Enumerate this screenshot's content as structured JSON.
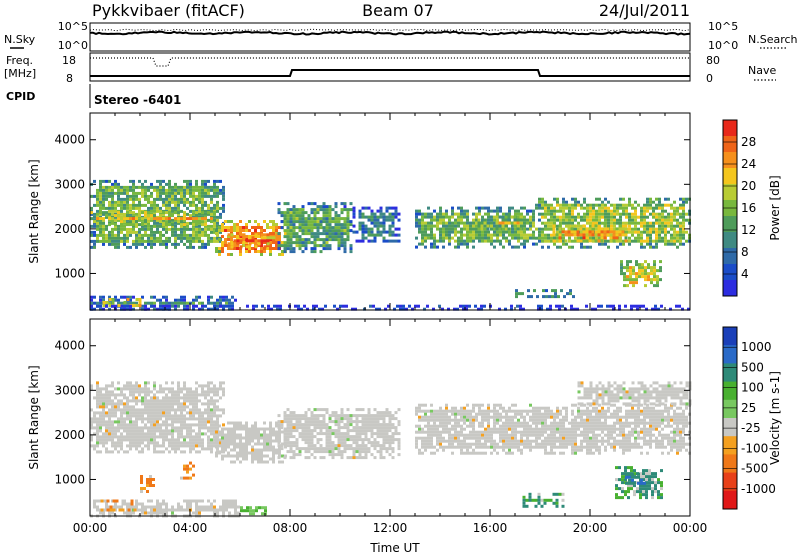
{
  "header": {
    "station": "Pykkvibaer (fitACF)",
    "beam": "Beam 07",
    "date": "24/Jul/2011"
  },
  "top_panels": {
    "nsky_label": "N.Sky",
    "nsky_ticks": [
      "10^5",
      "10^0"
    ],
    "nsearch_label": "N.Search",
    "nsearch_ticks": [
      "10^5",
      "10^0"
    ],
    "freq_label": "Freq.",
    "freq_unit": "[MHz]",
    "freq_ticks": [
      "18",
      "8"
    ],
    "nave_label": "Nave",
    "nave_ticks": [
      "80",
      "0"
    ],
    "cpid_label": "CPID",
    "cpid_value": "Stereo -6401"
  },
  "colors": {
    "power_scale": [
      "#2d2de0",
      "#1a4cc8",
      "#2e6aa8",
      "#3f8a82",
      "#4e9c5a",
      "#78b83e",
      "#b8cc34",
      "#f4c61e",
      "#f6901c",
      "#f06418",
      "#e8281a"
    ],
    "velocity_scale": [
      "#1a3fb8",
      "#2a6ac8",
      "#2e8a78",
      "#48b030",
      "#78c860",
      "#c8c8c4",
      "#f4a020",
      "#f07818",
      "#e84018",
      "#e01818"
    ]
  },
  "chart_data": [
    {
      "type": "heatmap",
      "panel": "power",
      "xlabel": "Time UT",
      "ylabel": "Slant Range [km]",
      "x_ticks": [
        "00:00",
        "04:00",
        "08:00",
        "12:00",
        "16:00",
        "20:00",
        "00:00"
      ],
      "y_ticks": [
        "1000",
        "2000",
        "3000",
        "4000"
      ],
      "xlim_hours": [
        0,
        24
      ],
      "ylim_km": [
        180,
        4600
      ],
      "colorbar": {
        "label": "Power [dB]",
        "ticks": [
          "4",
          "8",
          "12",
          "16",
          "20",
          "24",
          "28"
        ],
        "range": [
          0,
          30
        ]
      },
      "echo_regions": [
        {
          "t0": 0.0,
          "t1": 5.3,
          "r0": 1600,
          "r1": 3100,
          "level": 14
        },
        {
          "t0": 0.0,
          "t1": 5.0,
          "r0": 2100,
          "r1": 2400,
          "level": 22
        },
        {
          "t0": 5.0,
          "t1": 7.8,
          "r0": 1400,
          "r1": 2200,
          "level": 24
        },
        {
          "t0": 5.5,
          "t1": 7.5,
          "r0": 1600,
          "r1": 1900,
          "level": 28
        },
        {
          "t0": 7.5,
          "t1": 10.5,
          "r0": 1500,
          "r1": 2600,
          "level": 12
        },
        {
          "t0": 10.5,
          "t1": 12.3,
          "r0": 1700,
          "r1": 2500,
          "level": 8
        },
        {
          "t0": 13.0,
          "t1": 18.0,
          "r0": 1600,
          "r1": 2500,
          "level": 14
        },
        {
          "t0": 15.5,
          "t1": 17.3,
          "r0": 2000,
          "r1": 2300,
          "level": 20
        },
        {
          "t0": 17.8,
          "t1": 24.0,
          "r0": 1600,
          "r1": 2700,
          "level": 16
        },
        {
          "t0": 18.5,
          "t1": 21.5,
          "r0": 1700,
          "r1": 2100,
          "level": 24
        },
        {
          "t0": 21.2,
          "t1": 22.8,
          "r0": 700,
          "r1": 1300,
          "level": 20
        },
        {
          "t0": 0.0,
          "t1": 5.8,
          "r0": 200,
          "r1": 500,
          "level": 10
        },
        {
          "t0": 0.5,
          "t1": 2.0,
          "r0": 250,
          "r1": 450,
          "level": 26
        },
        {
          "t0": 17.0,
          "t1": 19.3,
          "r0": 450,
          "r1": 650,
          "level": 14
        },
        {
          "t0": 0.0,
          "t1": 24.0,
          "r0": 200,
          "r1": 300,
          "level": 6
        }
      ]
    },
    {
      "type": "heatmap",
      "panel": "velocity",
      "xlabel": "Time UT",
      "ylabel": "Slant Range [km]",
      "x_ticks": [
        "00:00",
        "04:00",
        "08:00",
        "12:00",
        "16:00",
        "20:00",
        "00:00"
      ],
      "y_ticks": [
        "1000",
        "2000",
        "3000",
        "4000"
      ],
      "xlim_hours": [
        0,
        24
      ],
      "ylim_km": [
        180,
        4600
      ],
      "colorbar": {
        "label": "Velocity [m s-1]",
        "ticks": [
          "1000",
          "500",
          "100",
          "25",
          "-25",
          "-100",
          "-500",
          "-1000"
        ]
      },
      "echo_regions": [
        {
          "t0": 0.0,
          "t1": 5.3,
          "r0": 1600,
          "r1": 3200,
          "class": "ground"
        },
        {
          "t0": 5.0,
          "t1": 7.8,
          "r0": 1400,
          "r1": 2300,
          "class": "ground"
        },
        {
          "t0": 7.5,
          "t1": 12.3,
          "r0": 1500,
          "r1": 2600,
          "class": "ground"
        },
        {
          "t0": 13.0,
          "t1": 24.0,
          "r0": 1600,
          "r1": 2700,
          "class": "ground"
        },
        {
          "t0": 19.5,
          "t1": 24.0,
          "r0": 2700,
          "r1": 3200,
          "class": "ground"
        },
        {
          "t0": 0.0,
          "t1": 6.0,
          "r0": 200,
          "r1": 550,
          "class": "ground"
        },
        {
          "t0": 0.3,
          "t1": 1.8,
          "r0": 300,
          "r1": 550,
          "class": "away"
        },
        {
          "t0": 2.0,
          "t1": 2.6,
          "r0": 700,
          "r1": 1100,
          "class": "away"
        },
        {
          "t0": 3.6,
          "t1": 4.1,
          "r0": 1000,
          "r1": 1400,
          "class": "away"
        },
        {
          "t0": 6.0,
          "t1": 7.0,
          "r0": 200,
          "r1": 400,
          "class": "slow_toward"
        },
        {
          "t0": 17.3,
          "t1": 18.9,
          "r0": 400,
          "r1": 700,
          "class": "toward"
        },
        {
          "t0": 21.0,
          "t1": 22.9,
          "r0": 600,
          "r1": 1300,
          "class": "toward"
        },
        {
          "t0": 21.4,
          "t1": 22.2,
          "r0": 900,
          "r1": 1150,
          "class": "fast_toward"
        }
      ]
    }
  ]
}
